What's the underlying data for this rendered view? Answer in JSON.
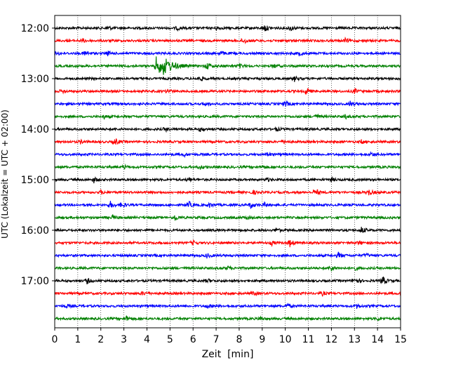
{
  "chart_data": {
    "type": "line",
    "title": "",
    "xlabel": "Zeit  [min]",
    "ylabel": "UTC (Lokalzeit = UTC + 02:00)",
    "xlim": [
      0,
      15
    ],
    "x_ticks": [
      "0",
      "1",
      "2",
      "3",
      "4",
      "5",
      "6",
      "7",
      "8",
      "9",
      "10",
      "11",
      "12",
      "13",
      "14",
      "15"
    ],
    "y_ticks": [
      "12:00",
      "13:00",
      "14:00",
      "15:00",
      "16:00",
      "17:00"
    ],
    "grid": {
      "x": "dotted",
      "y": "none"
    },
    "traces_per_hour": 4,
    "minutes_per_trace": 15,
    "color_cycle": [
      "#000000",
      "#ff0000",
      "#0000ff",
      "#008000"
    ],
    "traces": [
      {
        "start": "12:00",
        "color": "#000000",
        "events": [
          [
            2.3,
            0.6
          ],
          [
            5.3,
            0.5
          ],
          [
            7.0,
            0.5
          ],
          [
            9.1,
            1.0
          ],
          [
            10.2,
            0.9
          ]
        ]
      },
      {
        "start": "12:15",
        "color": "#ff0000",
        "events": [
          [
            1.2,
            0.5
          ],
          [
            8.2,
            0.8
          ],
          [
            12.6,
            0.5
          ]
        ]
      },
      {
        "start": "12:30",
        "color": "#0000ff",
        "events": [
          [
            0.1,
            0.5
          ],
          [
            1.3,
            1.0
          ],
          [
            2.3,
            0.5
          ],
          [
            7.2,
            0.7
          ],
          [
            10.6,
            0.5
          ]
        ]
      },
      {
        "start": "12:45",
        "color": "#008000",
        "events": [
          [
            4.4,
            2.5
          ],
          [
            4.7,
            1.6
          ],
          [
            6.6,
            1.0
          ],
          [
            8.0,
            0.6
          ],
          [
            9.5,
            0.5
          ]
        ]
      },
      {
        "start": "13:00",
        "color": "#000000",
        "events": [
          [
            6.3,
            0.6
          ],
          [
            10.4,
            0.7
          ]
        ]
      },
      {
        "start": "13:15",
        "color": "#ff0000",
        "events": [
          [
            0.3,
            0.5
          ],
          [
            4.9,
            0.5
          ],
          [
            10.9,
            1.0
          ],
          [
            13.0,
            0.6
          ]
        ]
      },
      {
        "start": "13:30",
        "color": "#0000ff",
        "events": [
          [
            6.5,
            0.6
          ],
          [
            10.0,
            0.8
          ],
          [
            12.8,
            0.8
          ]
        ]
      },
      {
        "start": "13:45",
        "color": "#008000",
        "events": [
          [
            2.1,
            0.6
          ],
          [
            11.3,
            0.7
          ],
          [
            12.6,
            0.5
          ]
        ]
      },
      {
        "start": "14:00",
        "color": "#000000",
        "events": [
          [
            4.8,
            0.5
          ],
          [
            6.3,
            0.6
          ],
          [
            9.6,
            0.5
          ]
        ]
      },
      {
        "start": "14:15",
        "color": "#ff0000",
        "events": [
          [
            1.1,
            0.5
          ],
          [
            2.6,
            1.1
          ],
          [
            9.9,
            0.5
          ],
          [
            13.3,
            0.5
          ]
        ]
      },
      {
        "start": "14:30",
        "color": "#0000ff",
        "events": [
          [
            5.6,
            0.5
          ],
          [
            9.2,
            0.6
          ],
          [
            13.7,
            0.6
          ]
        ]
      },
      {
        "start": "14:45",
        "color": "#008000",
        "events": [
          [
            3.0,
            0.5
          ],
          [
            6.3,
            0.5
          ],
          [
            9.0,
            0.5
          ]
        ]
      },
      {
        "start": "15:00",
        "color": "#000000",
        "events": [
          [
            1.7,
            0.8
          ],
          [
            5.8,
            0.6
          ],
          [
            9.2,
            0.5
          ],
          [
            12.0,
            0.5
          ]
        ]
      },
      {
        "start": "15:15",
        "color": "#ff0000",
        "events": [
          [
            2.0,
            0.5
          ],
          [
            8.6,
            0.5
          ],
          [
            11.3,
            1.0
          ],
          [
            13.6,
            0.9
          ]
        ]
      },
      {
        "start": "15:30",
        "color": "#0000ff",
        "events": [
          [
            2.4,
            1.0
          ],
          [
            2.9,
            0.9
          ],
          [
            5.8,
            1.0
          ],
          [
            6.7,
            0.7
          ],
          [
            8.5,
            0.8
          ],
          [
            9.1,
            0.5
          ]
        ]
      },
      {
        "start": "15:45",
        "color": "#008000",
        "events": [
          [
            2.5,
            0.7
          ],
          [
            5.2,
            0.8
          ],
          [
            8.3,
            0.5
          ]
        ]
      },
      {
        "start": "16:00",
        "color": "#000000",
        "events": [
          [
            9.6,
            0.6
          ],
          [
            13.3,
            1.0
          ]
        ]
      },
      {
        "start": "16:15",
        "color": "#ff0000",
        "events": [
          [
            6.0,
            0.5
          ],
          [
            9.4,
            0.6
          ],
          [
            10.2,
            1.0
          ],
          [
            13.2,
            0.5
          ]
        ]
      },
      {
        "start": "16:30",
        "color": "#0000ff",
        "events": [
          [
            6.6,
            0.6
          ],
          [
            12.3,
            0.8
          ],
          [
            13.5,
            0.5
          ]
        ]
      },
      {
        "start": "16:45",
        "color": "#008000",
        "events": [
          [
            7.5,
            0.5
          ],
          [
            12.0,
            0.8
          ],
          [
            13.0,
            0.5
          ]
        ]
      },
      {
        "start": "17:00",
        "color": "#000000",
        "events": [
          [
            1.4,
            0.8
          ],
          [
            6.6,
            0.6
          ],
          [
            13.0,
            1.0
          ],
          [
            14.2,
            1.4
          ]
        ]
      },
      {
        "start": "17:15",
        "color": "#ff0000",
        "events": [
          [
            3.8,
            0.5
          ],
          [
            8.6,
            0.5
          ],
          [
            11.6,
            0.5
          ]
        ]
      },
      {
        "start": "17:30",
        "color": "#0000ff",
        "events": [
          [
            0.5,
            0.5
          ],
          [
            6.6,
            0.5
          ],
          [
            10.1,
            0.5
          ],
          [
            13.1,
            0.5
          ]
        ]
      },
      {
        "start": "17:45",
        "color": "#008000",
        "events": [
          [
            3.1,
            0.7
          ],
          [
            8.9,
            0.5
          ],
          [
            14.0,
            0.5
          ]
        ]
      }
    ]
  }
}
